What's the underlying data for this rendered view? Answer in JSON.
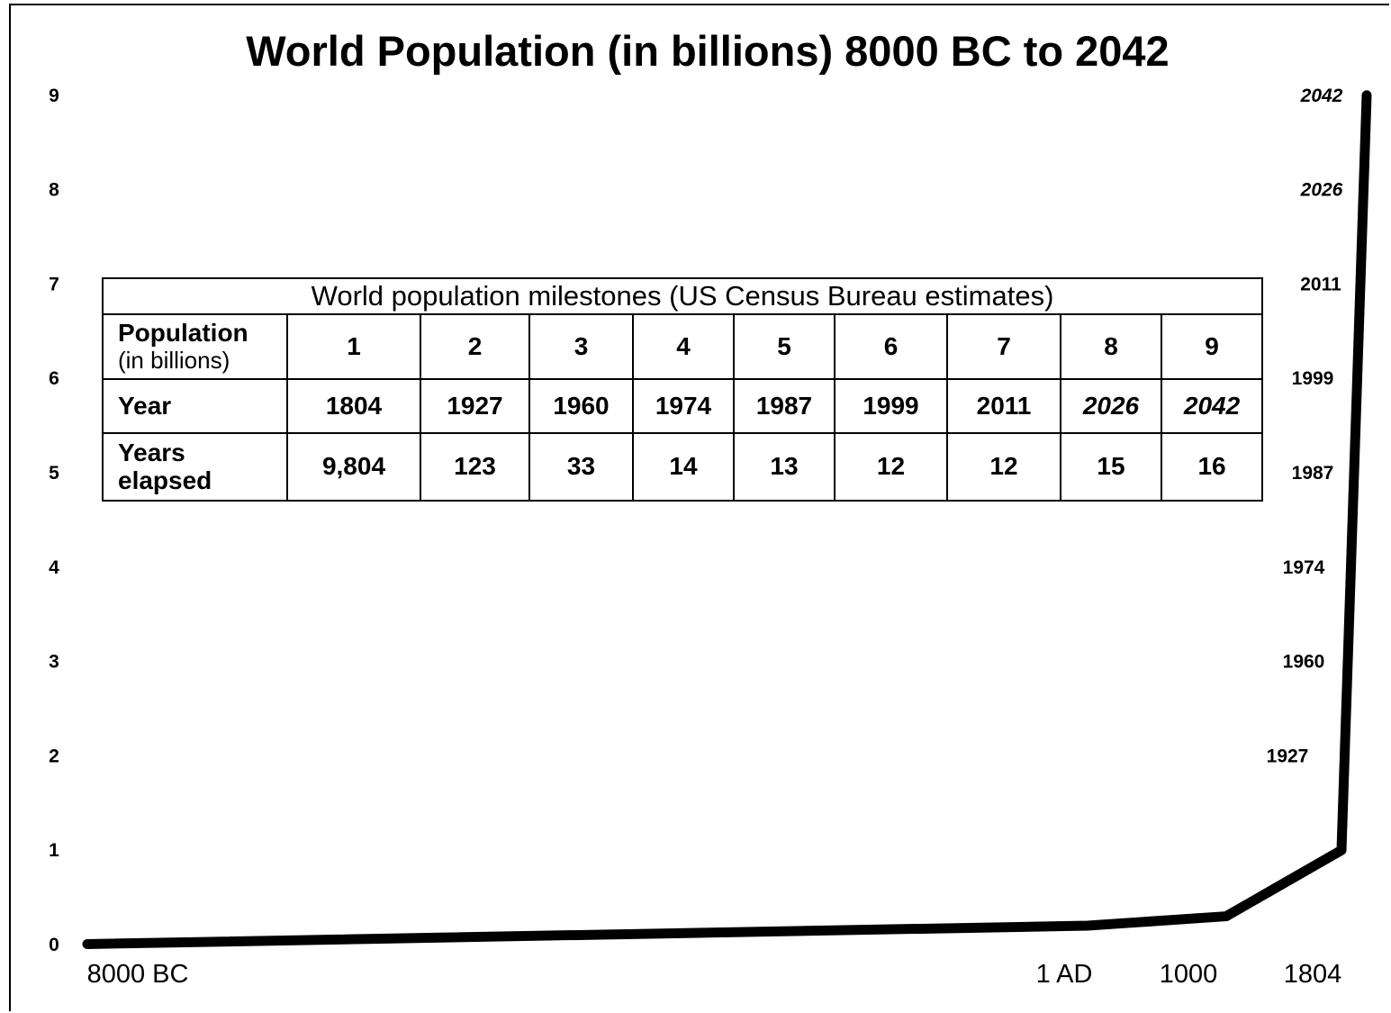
{
  "chart_data": {
    "type": "line",
    "title": "World Population (in billions)  8000 BC to 2042",
    "xlabel": "",
    "ylabel": "",
    "ylim": [
      0,
      9
    ],
    "y_ticks": [
      "0",
      "1",
      "2",
      "3",
      "4",
      "5",
      "6",
      "7",
      "8",
      "9"
    ],
    "x_tick_labels": [
      "8000 BC",
      "1 AD",
      "1000",
      "1804"
    ],
    "series": [
      {
        "points": [
          {
            "x": "8000 BC",
            "y": 0.005
          },
          {
            "x": "1 AD",
            "y": 0.2
          },
          {
            "x": "1000",
            "y": 0.3
          },
          {
            "x": "1804",
            "y": 1
          },
          {
            "x": "2042",
            "y": 9
          }
        ]
      }
    ],
    "milestone_labels": [
      {
        "label": "1927",
        "y": 2,
        "italic": false
      },
      {
        "label": "1960",
        "y": 3,
        "italic": false
      },
      {
        "label": "1974",
        "y": 4,
        "italic": false
      },
      {
        "label": "1987",
        "y": 5,
        "italic": false
      },
      {
        "label": "1999",
        "y": 6,
        "italic": false
      },
      {
        "label": "2011",
        "y": 7,
        "italic": false
      },
      {
        "label": "2026",
        "y": 8,
        "italic": true
      },
      {
        "label": "2042",
        "y": 9,
        "italic": true
      }
    ],
    "grid": false
  },
  "milestones_table": {
    "caption": "World population milestones (US Census Bureau estimates)",
    "population_header": "Population",
    "population_subheader": "(in billions)",
    "year_header": "Year",
    "elapsed_header_line1": "Years",
    "elapsed_header_line2": "elapsed",
    "population": [
      "1",
      "2",
      "3",
      "4",
      "5",
      "6",
      "7",
      "8",
      "9"
    ],
    "year": [
      "1804",
      "1927",
      "1960",
      "1974",
      "1987",
      "1999",
      "2011",
      "2026",
      "2042"
    ],
    "year_projected": [
      false,
      false,
      false,
      false,
      false,
      false,
      false,
      true,
      true
    ],
    "elapsed": [
      "9,804",
      "123",
      "33",
      "14",
      "13",
      "12",
      "12",
      "15",
      "16"
    ]
  }
}
